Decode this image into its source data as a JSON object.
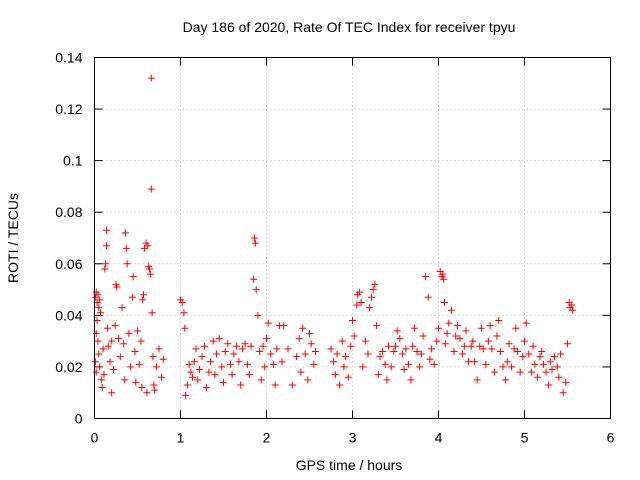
{
  "chart_data": {
    "type": "scatter",
    "title": "Day 186 of 2020, Rate Of TEC Index for receiver tpyu",
    "xlabel": "GPS time / hours",
    "ylabel": "ROTI / TECUs",
    "xlim": [
      0,
      6
    ],
    "ylim": [
      0,
      0.14
    ],
    "xticks": [
      0,
      1,
      2,
      3,
      4,
      5,
      6
    ],
    "xtick_labels": [
      "0",
      "1",
      "2",
      "3",
      "4",
      "5",
      "6"
    ],
    "yticks": [
      0,
      0.02,
      0.04,
      0.06,
      0.08,
      0.1,
      0.12,
      0.14
    ],
    "ytick_labels": [
      "0",
      "0.02",
      "0.04",
      "0.06",
      "0.08",
      "0.1",
      "0.12",
      "0.14"
    ],
    "grid": true,
    "marker": "+",
    "color": "#ff0000",
    "series": [
      {
        "name": "ROTI",
        "points": [
          [
            0.01,
            0.047
          ],
          [
            0.02,
            0.049
          ],
          [
            0.03,
            0.045
          ],
          [
            0.04,
            0.048
          ],
          [
            0.05,
            0.043
          ],
          [
            0.06,
            0.046
          ],
          [
            0.07,
            0.041
          ],
          [
            0.02,
            0.033
          ],
          [
            0.03,
            0.038
          ],
          [
            0.04,
            0.03
          ],
          [
            0.01,
            0.022
          ],
          [
            0.02,
            0.018
          ],
          [
            0.05,
            0.025
          ],
          [
            0.06,
            0.02
          ],
          [
            0.08,
            0.015
          ],
          [
            0.1,
            0.027
          ],
          [
            0.12,
            0.058
          ],
          [
            0.13,
            0.06
          ],
          [
            0.14,
            0.067
          ],
          [
            0.14,
            0.073
          ],
          [
            0.15,
            0.035
          ],
          [
            0.16,
            0.028
          ],
          [
            0.18,
            0.022
          ],
          [
            0.2,
            0.03
          ],
          [
            0.22,
            0.019
          ],
          [
            0.24,
            0.036
          ],
          [
            0.25,
            0.052
          ],
          [
            0.26,
            0.051
          ],
          [
            0.28,
            0.031
          ],
          [
            0.3,
            0.024
          ],
          [
            0.32,
            0.043
          ],
          [
            0.34,
            0.029
          ],
          [
            0.36,
            0.072
          ],
          [
            0.37,
            0.066
          ],
          [
            0.38,
            0.06
          ],
          [
            0.4,
            0.033
          ],
          [
            0.42,
            0.02
          ],
          [
            0.44,
            0.047
          ],
          [
            0.45,
            0.055
          ],
          [
            0.47,
            0.026
          ],
          [
            0.48,
            0.014
          ],
          [
            0.5,
            0.034
          ],
          [
            0.52,
            0.021
          ],
          [
            0.54,
            0.03
          ],
          [
            0.56,
            0.046
          ],
          [
            0.57,
            0.048
          ],
          [
            0.58,
            0.066
          ],
          [
            0.6,
            0.068
          ],
          [
            0.62,
            0.067
          ],
          [
            0.63,
            0.059
          ],
          [
            0.64,
            0.058
          ],
          [
            0.65,
            0.056
          ],
          [
            0.66,
            0.132
          ],
          [
            0.66,
            0.089
          ],
          [
            0.67,
            0.041
          ],
          [
            0.68,
            0.024
          ],
          [
            0.7,
            0.011
          ],
          [
            0.72,
            0.02
          ],
          [
            0.75,
            0.027
          ],
          [
            0.78,
            0.016
          ],
          [
            0.8,
            0.023
          ],
          [
            0.09,
            0.012
          ],
          [
            0.11,
            0.017
          ],
          [
            0.2,
            0.01
          ],
          [
            0.35,
            0.015
          ],
          [
            0.55,
            0.012
          ],
          [
            0.61,
            0.01
          ],
          [
            0.69,
            0.013
          ],
          [
            1.0,
            0.046
          ],
          [
            1.02,
            0.045
          ],
          [
            1.04,
            0.041
          ],
          [
            1.05,
            0.035
          ],
          [
            1.06,
            0.009
          ],
          [
            1.08,
            0.013
          ],
          [
            1.1,
            0.021
          ],
          [
            1.12,
            0.018
          ],
          [
            1.14,
            0.016
          ],
          [
            1.16,
            0.022
          ],
          [
            1.18,
            0.027
          ],
          [
            1.2,
            0.015
          ],
          [
            1.22,
            0.019
          ],
          [
            1.25,
            0.024
          ],
          [
            1.28,
            0.028
          ],
          [
            1.3,
            0.012
          ],
          [
            1.33,
            0.018
          ],
          [
            1.35,
            0.022
          ],
          [
            1.38,
            0.03
          ],
          [
            1.4,
            0.017
          ],
          [
            1.42,
            0.025
          ],
          [
            1.45,
            0.031
          ],
          [
            1.48,
            0.02
          ],
          [
            1.5,
            0.014
          ],
          [
            1.52,
            0.026
          ],
          [
            1.55,
            0.029
          ],
          [
            1.58,
            0.021
          ],
          [
            1.6,
            0.017
          ],
          [
            1.62,
            0.025
          ],
          [
            1.65,
            0.028
          ],
          [
            1.68,
            0.022
          ],
          [
            1.7,
            0.013
          ],
          [
            1.72,
            0.027
          ],
          [
            1.75,
            0.029
          ],
          [
            1.78,
            0.021
          ],
          [
            1.8,
            0.017
          ],
          [
            1.82,
            0.028
          ],
          [
            1.85,
            0.054
          ],
          [
            1.86,
            0.07
          ],
          [
            1.87,
            0.068
          ],
          [
            1.88,
            0.05
          ],
          [
            1.9,
            0.04
          ],
          [
            1.92,
            0.026
          ],
          [
            1.94,
            0.015
          ],
          [
            1.96,
            0.028
          ],
          [
            1.98,
            0.02
          ],
          [
            2.0,
            0.031
          ],
          [
            2.02,
            0.037
          ],
          [
            2.05,
            0.025
          ],
          [
            2.08,
            0.021
          ],
          [
            2.1,
            0.013
          ],
          [
            2.12,
            0.027
          ],
          [
            2.15,
            0.036
          ],
          [
            2.18,
            0.022
          ],
          [
            2.2,
            0.036
          ],
          [
            2.25,
            0.027
          ],
          [
            2.3,
            0.013
          ],
          [
            2.35,
            0.024
          ],
          [
            2.38,
            0.031
          ],
          [
            2.4,
            0.018
          ],
          [
            2.42,
            0.035
          ],
          [
            2.45,
            0.025
          ],
          [
            2.48,
            0.015
          ],
          [
            2.5,
            0.033
          ],
          [
            2.52,
            0.029
          ],
          [
            2.55,
            0.021
          ],
          [
            2.57,
            0.026
          ],
          [
            2.75,
            0.027
          ],
          [
            2.78,
            0.022
          ],
          [
            2.8,
            0.017
          ],
          [
            2.82,
            0.025
          ],
          [
            2.85,
            0.013
          ],
          [
            2.88,
            0.03
          ],
          [
            2.9,
            0.02
          ],
          [
            2.92,
            0.024
          ],
          [
            2.95,
            0.016
          ],
          [
            2.98,
            0.028
          ],
          [
            3.0,
            0.038
          ],
          [
            3.02,
            0.032
          ],
          [
            3.05,
            0.044
          ],
          [
            3.06,
            0.048
          ],
          [
            3.08,
            0.049
          ],
          [
            3.1,
            0.045
          ],
          [
            3.12,
            0.02
          ],
          [
            3.15,
            0.03
          ],
          [
            3.18,
            0.025
          ],
          [
            3.2,
            0.043
          ],
          [
            3.22,
            0.047
          ],
          [
            3.24,
            0.05
          ],
          [
            3.26,
            0.052
          ],
          [
            3.28,
            0.036
          ],
          [
            3.3,
            0.017
          ],
          [
            3.32,
            0.024
          ],
          [
            3.35,
            0.026
          ],
          [
            3.38,
            0.021
          ],
          [
            3.4,
            0.015
          ],
          [
            3.42,
            0.028
          ],
          [
            3.45,
            0.02
          ],
          [
            3.48,
            0.026
          ],
          [
            3.5,
            0.028
          ],
          [
            3.52,
            0.034
          ],
          [
            3.55,
            0.031
          ],
          [
            3.58,
            0.025
          ],
          [
            3.6,
            0.019
          ],
          [
            3.62,
            0.027
          ],
          [
            3.65,
            0.021
          ],
          [
            3.68,
            0.015
          ],
          [
            3.7,
            0.028
          ],
          [
            3.72,
            0.035
          ],
          [
            3.75,
            0.026
          ],
          [
            3.78,
            0.02
          ],
          [
            3.8,
            0.025
          ],
          [
            3.82,
            0.032
          ],
          [
            3.85,
            0.055
          ],
          [
            3.88,
            0.047
          ],
          [
            3.9,
            0.023
          ],
          [
            3.92,
            0.027
          ],
          [
            3.95,
            0.021
          ],
          [
            3.98,
            0.03
          ],
          [
            4.0,
            0.035
          ],
          [
            4.02,
            0.057
          ],
          [
            4.04,
            0.055
          ],
          [
            4.05,
            0.056
          ],
          [
            4.06,
            0.054
          ],
          [
            4.07,
            0.045
          ],
          [
            4.08,
            0.029
          ],
          [
            4.1,
            0.033
          ],
          [
            4.12,
            0.037
          ],
          [
            4.15,
            0.042
          ],
          [
            4.18,
            0.026
          ],
          [
            4.2,
            0.032
          ],
          [
            4.22,
            0.036
          ],
          [
            4.25,
            0.031
          ],
          [
            4.28,
            0.025
          ],
          [
            4.3,
            0.028
          ],
          [
            4.32,
            0.034
          ],
          [
            4.35,
            0.022
          ],
          [
            4.38,
            0.028
          ],
          [
            4.4,
            0.03
          ],
          [
            4.42,
            0.022
          ],
          [
            4.45,
            0.015
          ],
          [
            4.48,
            0.028
          ],
          [
            4.5,
            0.035
          ],
          [
            4.52,
            0.027
          ],
          [
            4.55,
            0.021
          ],
          [
            4.58,
            0.03
          ],
          [
            4.6,
            0.036
          ],
          [
            4.62,
            0.027
          ],
          [
            4.65,
            0.018
          ],
          [
            4.68,
            0.032
          ],
          [
            4.7,
            0.038
          ],
          [
            4.72,
            0.026
          ],
          [
            4.75,
            0.02
          ],
          [
            4.78,
            0.015
          ],
          [
            4.8,
            0.022
          ],
          [
            4.82,
            0.029
          ],
          [
            4.85,
            0.02
          ],
          [
            4.88,
            0.027
          ],
          [
            4.9,
            0.035
          ],
          [
            4.92,
            0.026
          ],
          [
            4.95,
            0.018
          ],
          [
            4.98,
            0.024
          ],
          [
            5.0,
            0.03
          ],
          [
            5.02,
            0.037
          ],
          [
            5.05,
            0.025
          ],
          [
            5.08,
            0.018
          ],
          [
            5.1,
            0.028
          ],
          [
            5.12,
            0.021
          ],
          [
            5.15,
            0.016
          ],
          [
            5.18,
            0.024
          ],
          [
            5.2,
            0.026
          ],
          [
            5.22,
            0.021
          ],
          [
            5.25,
            0.018
          ],
          [
            5.28,
            0.013
          ],
          [
            5.3,
            0.022
          ],
          [
            5.32,
            0.019
          ],
          [
            5.35,
            0.024
          ],
          [
            5.38,
            0.02
          ],
          [
            5.4,
            0.016
          ],
          [
            5.42,
            0.025
          ],
          [
            5.45,
            0.01
          ],
          [
            5.48,
            0.014
          ],
          [
            5.5,
            0.029
          ],
          [
            5.52,
            0.045
          ],
          [
            5.53,
            0.043
          ],
          [
            5.55,
            0.044
          ],
          [
            5.56,
            0.042
          ]
        ]
      }
    ]
  }
}
